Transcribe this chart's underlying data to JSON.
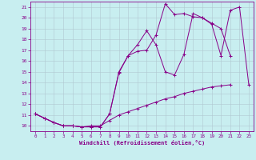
{
  "xlabel": "Windchill (Refroidissement éolien,°C)",
  "xlim": [
    -0.5,
    23.5
  ],
  "ylim": [
    9.5,
    21.5
  ],
  "xticks": [
    0,
    1,
    2,
    3,
    4,
    5,
    6,
    7,
    8,
    9,
    10,
    11,
    12,
    13,
    14,
    15,
    16,
    17,
    18,
    19,
    20,
    21,
    22,
    23
  ],
  "yticks": [
    10,
    11,
    12,
    13,
    14,
    15,
    16,
    17,
    18,
    19,
    20,
    21
  ],
  "line_color": "#880088",
  "bg_color": "#c8eef0",
  "grid_color": "#b0c8d0",
  "line1_x": [
    0,
    1,
    2,
    3,
    4,
    5,
    6,
    7,
    8,
    9,
    10,
    11,
    12,
    13,
    14,
    15,
    16,
    17,
    18,
    19,
    20,
    21,
    22,
    23
  ],
  "line1_y": [
    11.1,
    10.7,
    10.3,
    10.0,
    10.0,
    9.9,
    9.9,
    9.9,
    11.1,
    15.0,
    16.5,
    16.9,
    17.0,
    18.4,
    21.3,
    20.3,
    20.4,
    20.1,
    20.0,
    19.4,
    16.5,
    20.7,
    21.0,
    13.8
  ],
  "line2_x": [
    0,
    1,
    2,
    3,
    4,
    5,
    6,
    7,
    8,
    9,
    10,
    11,
    12,
    13,
    14,
    15,
    16,
    17,
    18,
    19,
    20,
    21,
    22,
    23
  ],
  "line2_y": [
    11.1,
    10.7,
    10.3,
    10.0,
    10.0,
    9.9,
    9.9,
    9.9,
    11.1,
    14.9,
    16.5,
    17.5,
    18.8,
    17.5,
    15.0,
    14.7,
    16.6,
    20.4,
    20.0,
    19.5,
    19.0,
    16.5,
    null,
    null
  ],
  "line3_x": [
    0,
    1,
    2,
    3,
    4,
    5,
    6,
    7,
    8,
    9,
    10,
    11,
    12,
    13,
    14,
    15,
    16,
    17,
    18,
    19,
    20,
    21,
    22,
    23
  ],
  "line3_y": [
    11.1,
    10.7,
    10.3,
    10.0,
    10.0,
    9.9,
    10.0,
    10.0,
    10.5,
    11.0,
    11.3,
    11.6,
    11.9,
    12.2,
    12.5,
    12.7,
    13.0,
    13.2,
    13.4,
    13.6,
    13.7,
    13.8,
    null,
    null
  ]
}
